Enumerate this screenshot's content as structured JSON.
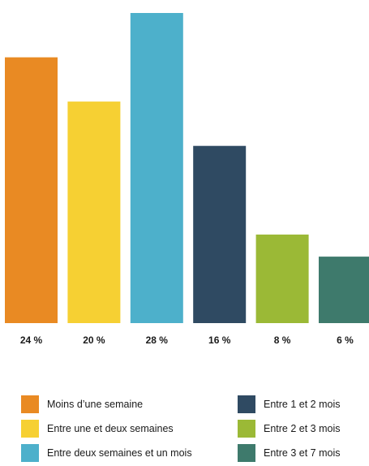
{
  "chart_data": {
    "type": "bar",
    "categories": [
      "Moins d’une semaine",
      "Entre une et deux semaines",
      "Entre deux semaines et un mois",
      "Entre 1 et 2 mois",
      "Entre 2 et 3 mois",
      "Entre 3 et 7 mois"
    ],
    "values": [
      24,
      20,
      28,
      16,
      8,
      6
    ],
    "value_labels": [
      "24 %",
      "20 %",
      "28 %",
      "16 %",
      "8 %",
      "6 %"
    ],
    "colors": [
      "#E98A23",
      "#F6D033",
      "#4DB0CB",
      "#2F4A62",
      "#9BB936",
      "#3E7A6C"
    ],
    "title": "",
    "xlabel": "",
    "ylabel": "",
    "ylim": [
      0,
      28
    ],
    "grid": false,
    "legend_position": "bottom"
  }
}
